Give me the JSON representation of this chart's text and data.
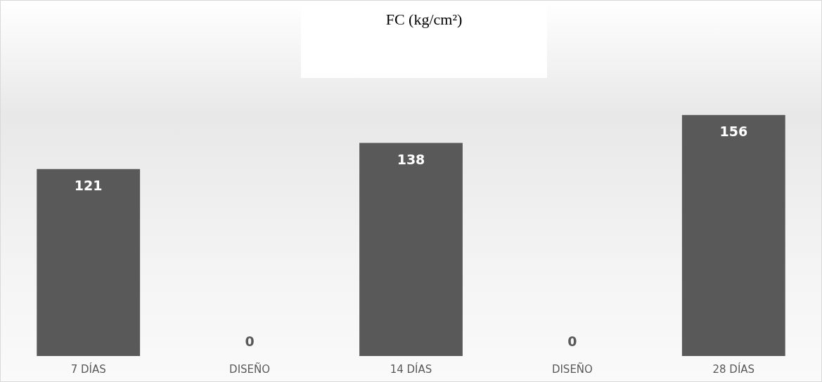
{
  "chart_data": {
    "type": "bar",
    "title": "FC (kg/cm²)",
    "categories": [
      "7 DÍAS",
      "DISEÑO",
      "14 DÍAS",
      "DISEÑO",
      "28 DÍAS"
    ],
    "values": [
      121,
      0,
      138,
      0,
      156
    ],
    "color": "#595959",
    "data_labels": true
  }
}
